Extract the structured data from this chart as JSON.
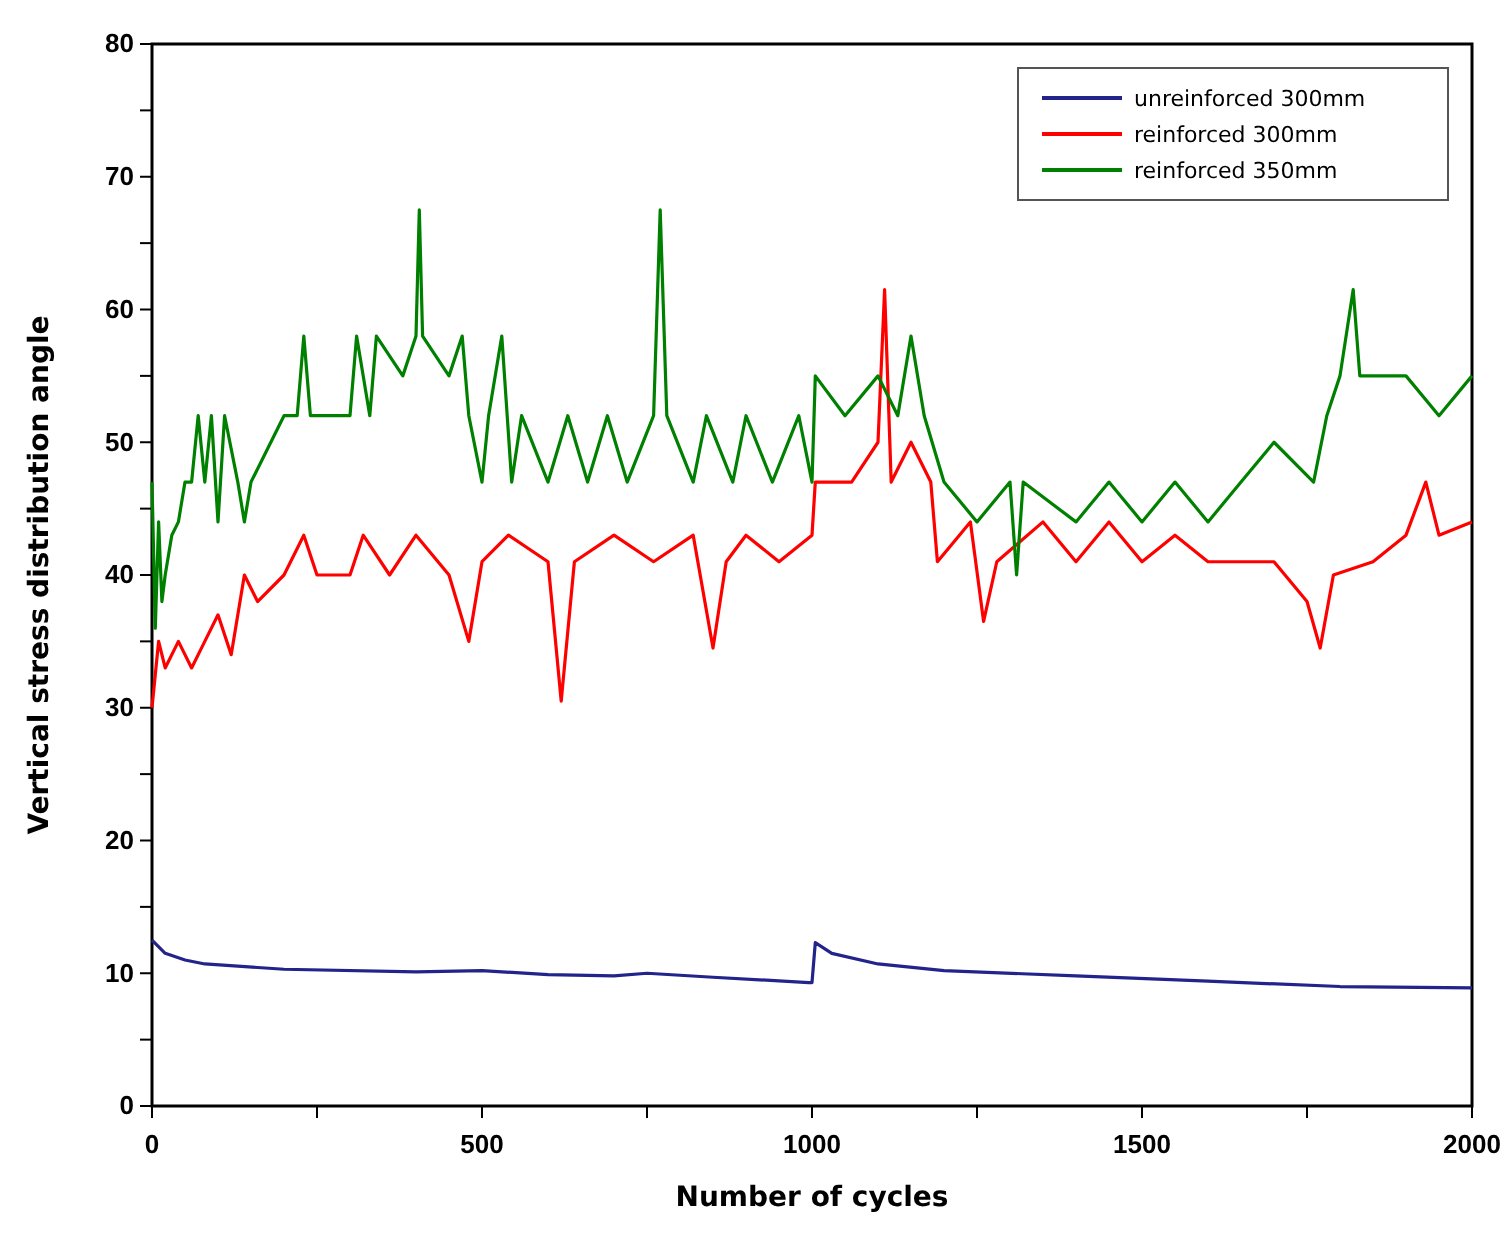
{
  "chart_data": {
    "type": "line",
    "xlabel": "Number of cycles",
    "ylabel": "Vertical stress distribution angle",
    "xlim": [
      0,
      2000
    ],
    "ylim": [
      0,
      80
    ],
    "xticks": [
      0,
      {
        "value": 250,
        "label": null
      },
      500,
      {
        "value": 750,
        "label": null
      },
      1000,
      {
        "value": 1250,
        "label": null
      },
      1500,
      {
        "value": 1750,
        "label": null
      },
      2000
    ],
    "yticks": [
      0,
      {
        "value": 5,
        "label": null
      },
      10,
      {
        "value": 15,
        "label": null
      },
      20,
      {
        "value": 25,
        "label": null
      },
      30,
      {
        "value": 35,
        "label": null
      },
      40,
      {
        "value": 45,
        "label": null
      },
      50,
      {
        "value": 55,
        "label": null
      },
      60,
      {
        "value": 65,
        "label": null
      },
      70,
      {
        "value": 75,
        "label": null
      },
      80
    ],
    "grid": false,
    "legend": "top right",
    "marker": "none",
    "line_style": "solid",
    "series": [
      {
        "name": "unreinforced 300mm",
        "color": "#23238c",
        "x": [
          0,
          20,
          50,
          80,
          200,
          400,
          500,
          600,
          700,
          750,
          850,
          995,
          1000,
          1005,
          1030,
          1100,
          1200,
          1400,
          1600,
          1800,
          2000
        ],
        "values": [
          12.5,
          11.5,
          11,
          10.7,
          10.3,
          10.1,
          10.2,
          9.9,
          9.8,
          10,
          9.7,
          9.3,
          9.3,
          12.3,
          11.5,
          10.7,
          10.2,
          9.8,
          9.4,
          9,
          8.9
        ]
      },
      {
        "name": "reinforced 300mm",
        "color": "#ff0000",
        "x": [
          0,
          10,
          20,
          40,
          60,
          80,
          100,
          120,
          140,
          160,
          200,
          230,
          250,
          300,
          320,
          360,
          400,
          450,
          480,
          500,
          540,
          600,
          620,
          640,
          700,
          760,
          820,
          850,
          870,
          900,
          950,
          1000,
          1005,
          1060,
          1100,
          1110,
          1120,
          1150,
          1180,
          1190,
          1240,
          1260,
          1280,
          1350,
          1400,
          1450,
          1500,
          1550,
          1600,
          1700,
          1750,
          1770,
          1790,
          1850,
          1900,
          1930,
          1950,
          2000
        ],
        "values": [
          30,
          35,
          33,
          35,
          33,
          35,
          37,
          34,
          40,
          38,
          40,
          43,
          40,
          40,
          43,
          40,
          43,
          40,
          35,
          41,
          43,
          41,
          30.5,
          41,
          43,
          41,
          43,
          34.5,
          41,
          43,
          41,
          43,
          47,
          47,
          50,
          61.5,
          47,
          50,
          47,
          41,
          44,
          36.5,
          41,
          44,
          41,
          44,
          41,
          43,
          41,
          41,
          38,
          34.5,
          40,
          41,
          43,
          47,
          43,
          44
        ]
      },
      {
        "name": "reinforced 350mm",
        "color": "#008000",
        "x": [
          0,
          5,
          10,
          15,
          20,
          30,
          40,
          50,
          60,
          70,
          80,
          90,
          100,
          110,
          130,
          140,
          150,
          200,
          220,
          230,
          240,
          300,
          310,
          330,
          340,
          380,
          400,
          405,
          410,
          450,
          470,
          480,
          500,
          510,
          530,
          545,
          560,
          600,
          630,
          660,
          690,
          720,
          760,
          770,
          780,
          820,
          840,
          880,
          900,
          940,
          980,
          1000,
          1005,
          1050,
          1100,
          1130,
          1150,
          1170,
          1200,
          1250,
          1300,
          1310,
          1320,
          1400,
          1450,
          1500,
          1550,
          1600,
          1650,
          1700,
          1760,
          1780,
          1800,
          1820,
          1830,
          1900,
          1950,
          2000
        ],
        "values": [
          47,
          36,
          44,
          38,
          40,
          43,
          44,
          47,
          47,
          52,
          47,
          52,
          44,
          52,
          47,
          44,
          47,
          52,
          52,
          58,
          52,
          52,
          58,
          52,
          58,
          55,
          58,
          67.5,
          58,
          55,
          58,
          52,
          47,
          52,
          58,
          47,
          52,
          47,
          52,
          47,
          52,
          47,
          52,
          67.5,
          52,
          47,
          52,
          47,
          52,
          47,
          52,
          47,
          55,
          52,
          55,
          52,
          58,
          52,
          47,
          44,
          47,
          40,
          47,
          44,
          47,
          44,
          47,
          44,
          47,
          50,
          47,
          52,
          55,
          61.5,
          55,
          55,
          52,
          55
        ]
      }
    ]
  }
}
